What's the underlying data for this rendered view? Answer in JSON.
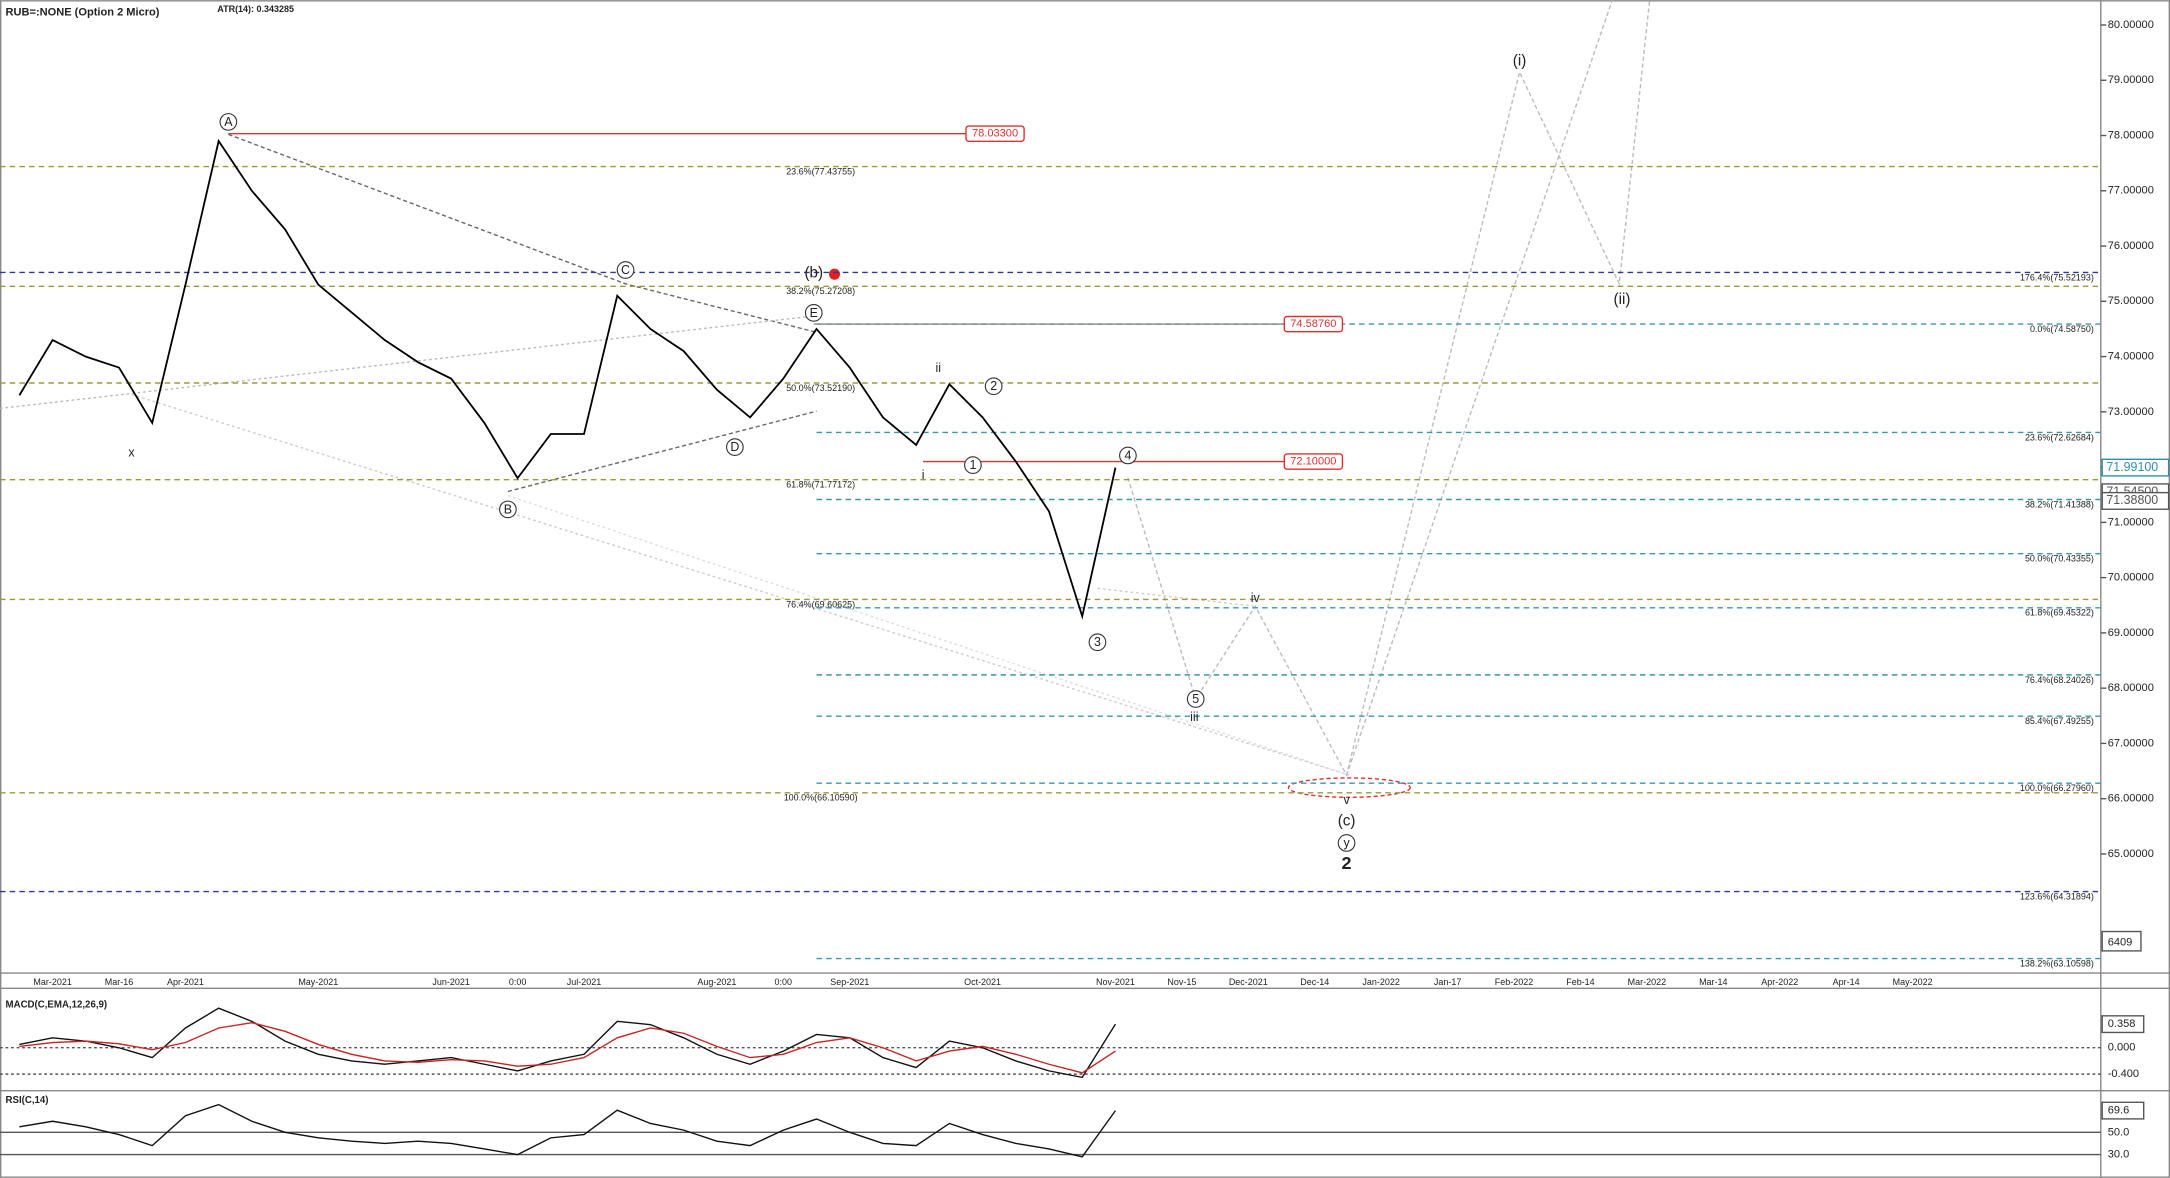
{
  "chart_data": [
    {
      "type": "line",
      "title": "RUB=:NONE (Option 2 Micro)",
      "subtitle": "ATR(14): 0.343285",
      "categories": [
        null,
        "Mar-2021",
        null,
        "Mar-16",
        null,
        "Apr-2021",
        null,
        null,
        null,
        "May-2021",
        null,
        null,
        null,
        "Jun-2021",
        null,
        "0:00",
        null,
        "Jul-2021",
        null,
        null,
        null,
        "Aug-2021",
        null,
        "0:00",
        null,
        "Sep-2021",
        null,
        null,
        null,
        "Oct-2021",
        null,
        null,
        null,
        "Nov-2021",
        null,
        "Nov-15",
        null,
        "Dec-2021",
        null,
        "Dec-14",
        null,
        "Jan-2022",
        null,
        "Jan-17",
        null,
        "Feb-2022",
        null,
        "Feb-14",
        null,
        "Mar-2022",
        null,
        "Mar-14",
        null,
        "Apr-2022",
        null,
        "Apr-14",
        null,
        "May-2022"
      ],
      "series": [
        {
          "color": "#000000",
          "values": [
            73.3,
            74.3,
            74.0,
            73.8,
            72.8,
            75.3,
            77.9,
            77.0,
            76.3,
            75.3,
            74.8,
            74.3,
            73.9,
            73.6,
            72.8,
            71.8,
            72.6,
            72.6,
            75.1,
            74.5,
            74.1,
            73.4,
            72.9,
            73.6,
            74.5,
            73.8,
            72.9,
            72.4,
            73.5,
            72.9,
            72.1,
            71.2,
            69.3,
            71.991,
            null,
            null,
            null,
            null,
            null,
            null,
            null,
            null,
            null,
            null,
            null,
            null,
            null,
            null,
            null,
            null,
            null,
            null,
            null,
            null,
            null,
            null,
            null,
            null
          ]
        }
      ],
      "ylim": [
        62.92,
        80.45
      ],
      "yticks": [
        {
          "value": 65,
          "label": "65.00000"
        },
        {
          "value": 66,
          "label": "66.00000"
        },
        {
          "value": 67,
          "label": "67.00000"
        },
        {
          "value": 68,
          "label": "68.00000"
        },
        {
          "value": 69,
          "label": "69.00000"
        },
        {
          "value": 70,
          "label": "70.00000"
        },
        {
          "value": 71,
          "label": "71.00000"
        },
        {
          "value": 72,
          "label": "72.00000"
        },
        {
          "value": 73,
          "label": "73.00000"
        },
        {
          "value": 74,
          "label": "74.00000"
        },
        {
          "value": 75,
          "label": "75.00000"
        },
        {
          "value": 76,
          "label": "76.00000"
        },
        {
          "value": 77,
          "label": "77.00000"
        },
        {
          "value": 78,
          "label": "78.00000"
        },
        {
          "value": 79,
          "label": "79.00000"
        },
        {
          "value": 80,
          "label": "80.00000"
        }
      ],
      "price_labels": [
        {
          "value": 71.991,
          "label": "71.99100",
          "color": "#2f8fa8"
        },
        {
          "value": 71.545,
          "label": "71.54500",
          "color": "#555555"
        },
        {
          "value": 71.388,
          "label": "71.38800",
          "color": "#555555"
        }
      ],
      "volume_label": "6409",
      "box_levels": [
        {
          "value": 78.033,
          "label": "78.03300",
          "color": "#e03030"
        },
        {
          "value": 74.5876,
          "label": "74.58760",
          "color": "#e03030"
        },
        {
          "value": 72.1,
          "label": "72.10000",
          "color": "#e03030"
        }
      ],
      "levels": [
        {
          "value": 77.43755,
          "label": "23.6%(77.43755)",
          "color": "#9a9a3a",
          "span": "full",
          "label_position": "middle"
        },
        {
          "value": 75.27208,
          "label": "38.2%(75.27208)",
          "color": "#9a9a3a",
          "span": "full",
          "label_position": "middle"
        },
        {
          "value": 73.5219,
          "label": "50.0%(73.52190)",
          "color": "#9a9a3a",
          "span": "full",
          "label_position": "middle"
        },
        {
          "value": 71.77172,
          "label": "61.8%(71.77172)",
          "color": "#9a9a3a",
          "span": "full",
          "label_position": "middle"
        },
        {
          "value": 69.60625,
          "label": "76.4%(69.60625)",
          "color": "#9a9a3a",
          "span": "full",
          "label_position": "middle"
        },
        {
          "value": 66.1059,
          "label": "100.0%(66.10590)",
          "color": "#9a9a3a",
          "span": "full",
          "label_position": "middle"
        },
        {
          "value": 75.52193,
          "label": "176.4%(75.52193)",
          "color": "#2a3a9a",
          "span": "full",
          "label_position": "right"
        },
        {
          "value": 74.5875,
          "label": "0.0%(74.58750)",
          "color": "#3a95b0",
          "span": "right",
          "label_position": "right"
        },
        {
          "value": 72.62684,
          "label": "23.6%(72.62684)",
          "color": "#3a95b0",
          "span": "right",
          "label_position": "right"
        },
        {
          "value": 71.41388,
          "label": "38.2%(71.41388)",
          "color": "#3a95b0",
          "span": "right",
          "label_position": "right"
        },
        {
          "value": 70.43355,
          "label": "50.0%(70.43355)",
          "color": "#3a95b0",
          "span": "right",
          "label_position": "right"
        },
        {
          "value": 69.45322,
          "label": "61.8%(69.45322)",
          "color": "#3a95b0",
          "span": "right",
          "label_position": "right"
        },
        {
          "value": 68.24026,
          "label": "76.4%(68.24026)",
          "color": "#3a95b0",
          "span": "right",
          "label_position": "right"
        },
        {
          "value": 67.49255,
          "label": "85.4%(67.49255)",
          "color": "#3a95b0",
          "span": "right",
          "label_position": "right"
        },
        {
          "value": 66.2796,
          "label": "100.0%(66.27960)",
          "color": "#3a95b0",
          "span": "right",
          "label_position": "right"
        },
        {
          "value": 64.31894,
          "label": "123.6%(64.31894)",
          "color": "#2a3a9a",
          "span": "full",
          "label_position": "right"
        },
        {
          "value": 63.10598,
          "label": "138.2%(63.10598)",
          "color": "#3a95b0",
          "span": "right",
          "label_position": "right"
        }
      ],
      "annotations": [
        {
          "text": "A",
          "circled": true
        },
        {
          "text": "x",
          "circled": false
        },
        {
          "text": "B",
          "circled": true
        },
        {
          "text": "C",
          "circled": true
        },
        {
          "text": "D",
          "circled": true
        },
        {
          "text": "E",
          "circled": true
        },
        {
          "text": "(b)",
          "circled": false
        },
        {
          "text": "i",
          "circled": false
        },
        {
          "text": "ii",
          "circled": false
        },
        {
          "text": "1",
          "circled": true
        },
        {
          "text": "2",
          "circled": true
        },
        {
          "text": "3",
          "circled": true
        },
        {
          "text": "4",
          "circled": true
        },
        {
          "text": "5",
          "circled": true
        },
        {
          "text": "iii",
          "circled": false
        },
        {
          "text": "iv",
          "circled": false
        },
        {
          "text": "v",
          "circled": false
        },
        {
          "text": "(c)",
          "circled": false
        },
        {
          "text": "y",
          "circled": true
        },
        {
          "text": "2",
          "circled": false
        },
        {
          "text": "(i)",
          "circled": false
        },
        {
          "text": "(ii)",
          "circled": false
        }
      ]
    },
    {
      "type": "line",
      "title": "MACD(C,EMA,12,26,9)",
      "series": [
        {
          "color": "#111111",
          "values": [
            0.05,
            0.15,
            0.1,
            0.0,
            -0.15,
            0.3,
            0.6,
            0.4,
            0.1,
            -0.1,
            -0.2,
            -0.25,
            -0.2,
            -0.15,
            -0.25,
            -0.35,
            -0.2,
            -0.1,
            0.4,
            0.35,
            0.15,
            -0.1,
            -0.25,
            -0.05,
            0.2,
            0.15,
            -0.15,
            -0.3,
            0.1,
            0.0,
            -0.2,
            -0.35,
            -0.45,
            0.358,
            null,
            null,
            null,
            null,
            null,
            null,
            null,
            null,
            null,
            null,
            null,
            null,
            null,
            null,
            null,
            null,
            null,
            null,
            null,
            null,
            null,
            null,
            null,
            null
          ]
        },
        {
          "color": "#cc2222",
          "values": [
            0.02,
            0.08,
            0.1,
            0.06,
            -0.03,
            0.08,
            0.3,
            0.38,
            0.25,
            0.05,
            -0.1,
            -0.2,
            -0.22,
            -0.18,
            -0.2,
            -0.28,
            -0.25,
            -0.15,
            0.15,
            0.3,
            0.22,
            0.02,
            -0.15,
            -0.1,
            0.08,
            0.15,
            0.0,
            -0.2,
            -0.05,
            0.02,
            -0.1,
            -0.25,
            -0.38,
            -0.05,
            null,
            null,
            null,
            null,
            null,
            null,
            null,
            null,
            null,
            null,
            null,
            null,
            null,
            null,
            null,
            null,
            null,
            null,
            null,
            null,
            null,
            null,
            null,
            null
          ]
        }
      ],
      "ylim": [
        -0.63,
        0.86
      ],
      "yticks": [
        {
          "value": 0.358,
          "label": "0.358"
        },
        {
          "value": 0,
          "label": "0.000"
        },
        {
          "value": -0.4,
          "label": "-0.400"
        }
      ]
    },
    {
      "type": "line",
      "title": "RSI(C,14)",
      "series": [
        {
          "color": "#111111",
          "values": [
            55,
            60,
            55,
            48,
            38,
            65,
            75,
            60,
            50,
            45,
            42,
            40,
            42,
            40,
            35,
            30,
            45,
            48,
            70,
            58,
            52,
            42,
            38,
            52,
            62,
            50,
            40,
            38,
            58,
            48,
            40,
            35,
            28,
            69.6,
            null,
            null,
            null,
            null,
            null,
            null,
            null,
            null,
            null,
            null,
            null,
            null,
            null,
            null,
            null,
            null,
            null,
            null,
            null,
            null,
            null,
            null,
            null,
            null
          ]
        }
      ],
      "ylim": [
        9.0,
        86.3
      ],
      "yticks": [
        69.6,
        {
          "value": 50,
          "label": "50.0"
        },
        {
          "value": 30,
          "label": "30.0"
        }
      ]
    }
  ]
}
